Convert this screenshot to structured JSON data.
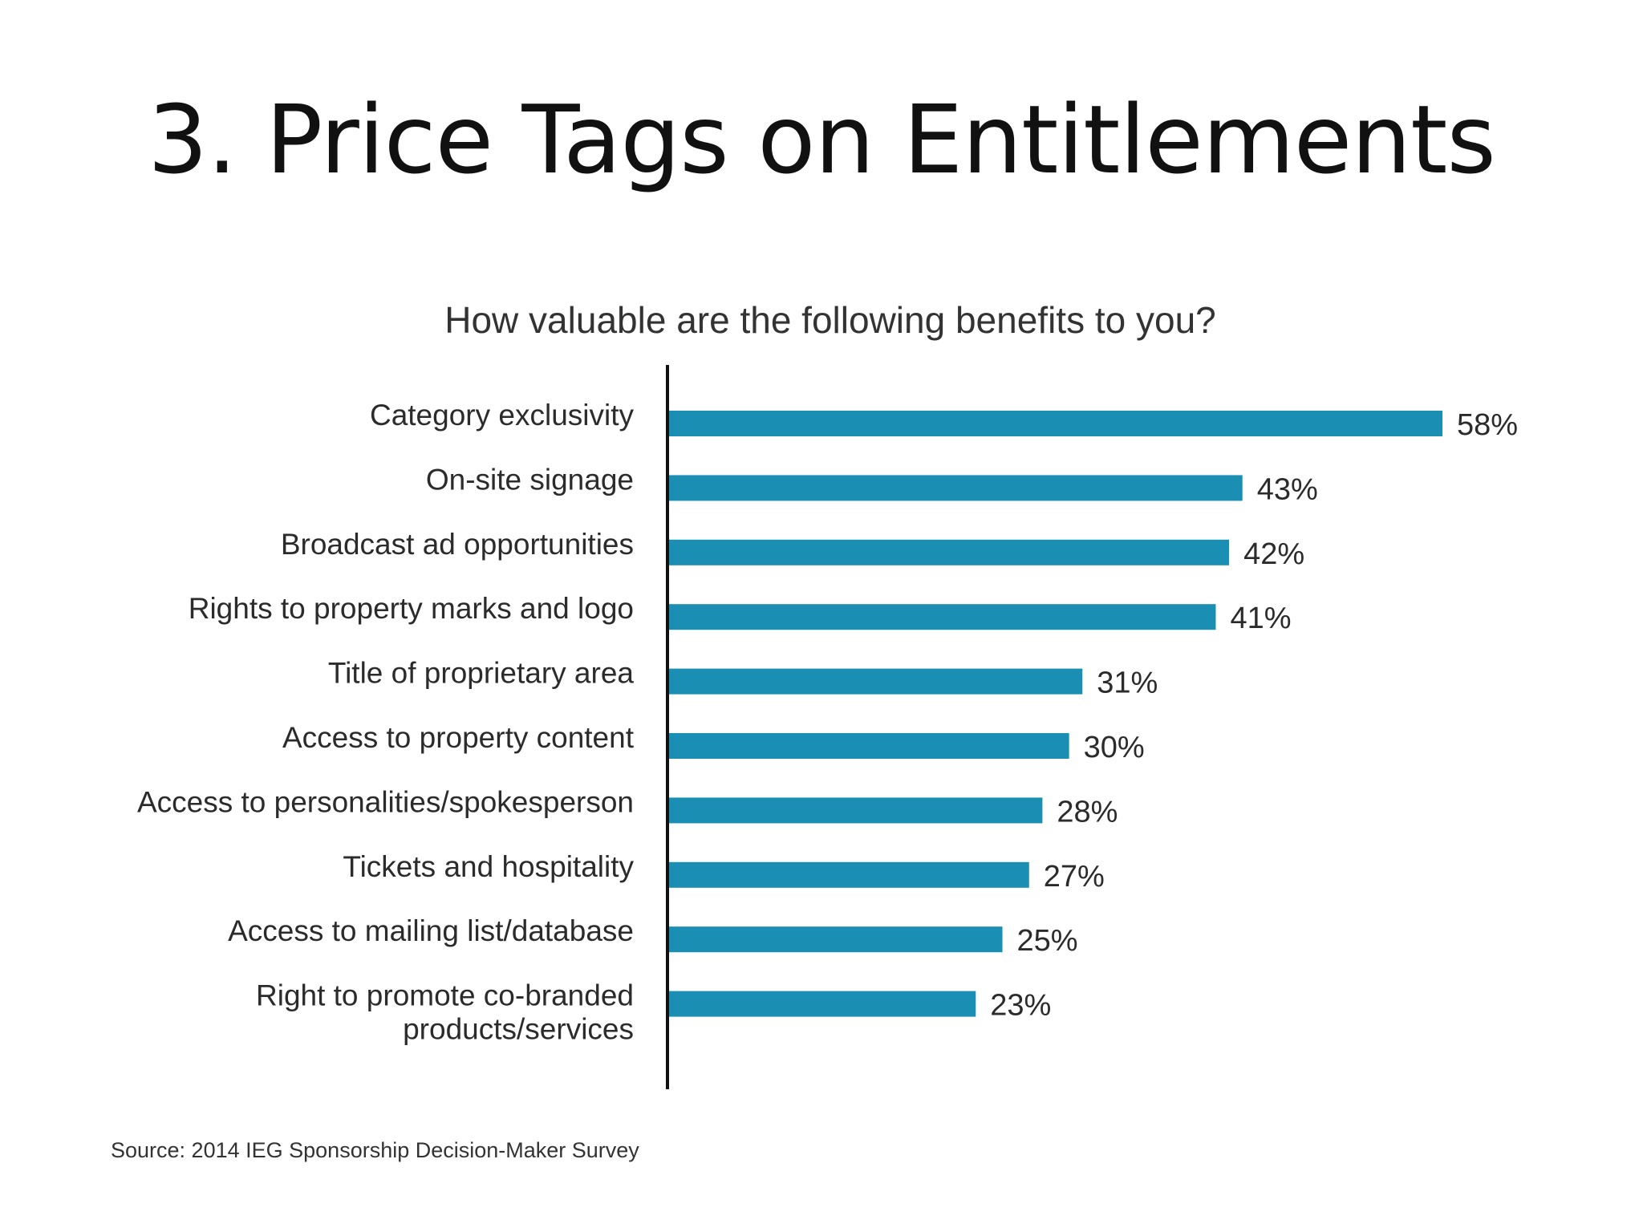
{
  "slide": {
    "title": "3. Price Tags on Entitlements"
  },
  "chart_data": {
    "type": "bar",
    "orientation": "horizontal",
    "title": "How valuable are the following benefits to you?",
    "categories": [
      "Category exclusivity",
      "On-site signage",
      "Broadcast ad opportunities",
      "Rights to property marks and logo",
      "Title of proprietary area",
      "Access to property content",
      "Access to personalities/spokesperson",
      "Tickets and hospitality",
      "Access to mailing list/database",
      "Right to promote co-branded products/services"
    ],
    "category_lines": [
      [
        "Category exclusivity"
      ],
      [
        "On-site signage"
      ],
      [
        "Broadcast ad opportunities"
      ],
      [
        "Rights to property marks and logo"
      ],
      [
        "Title of proprietary area"
      ],
      [
        "Access to property content"
      ],
      [
        "Access to personalities/spokesperson"
      ],
      [
        "Tickets and hospitality"
      ],
      [
        "Access to mailing list/database"
      ],
      [
        "Right to promote co-branded",
        "products/services"
      ]
    ],
    "values": [
      58,
      43,
      42,
      41,
      31,
      30,
      28,
      27,
      25,
      23
    ],
    "value_labels": [
      "58%",
      "43%",
      "42%",
      "41%",
      "31%",
      "30%",
      "28%",
      "27%",
      "25%",
      "23%"
    ],
    "unit": "%",
    "xlim": [
      0,
      58
    ],
    "bar_color": "#1a8fb3",
    "grid": false,
    "legend": "none",
    "source": "Source: 2014 IEG Sponsorship Decision-Maker Survey"
  }
}
